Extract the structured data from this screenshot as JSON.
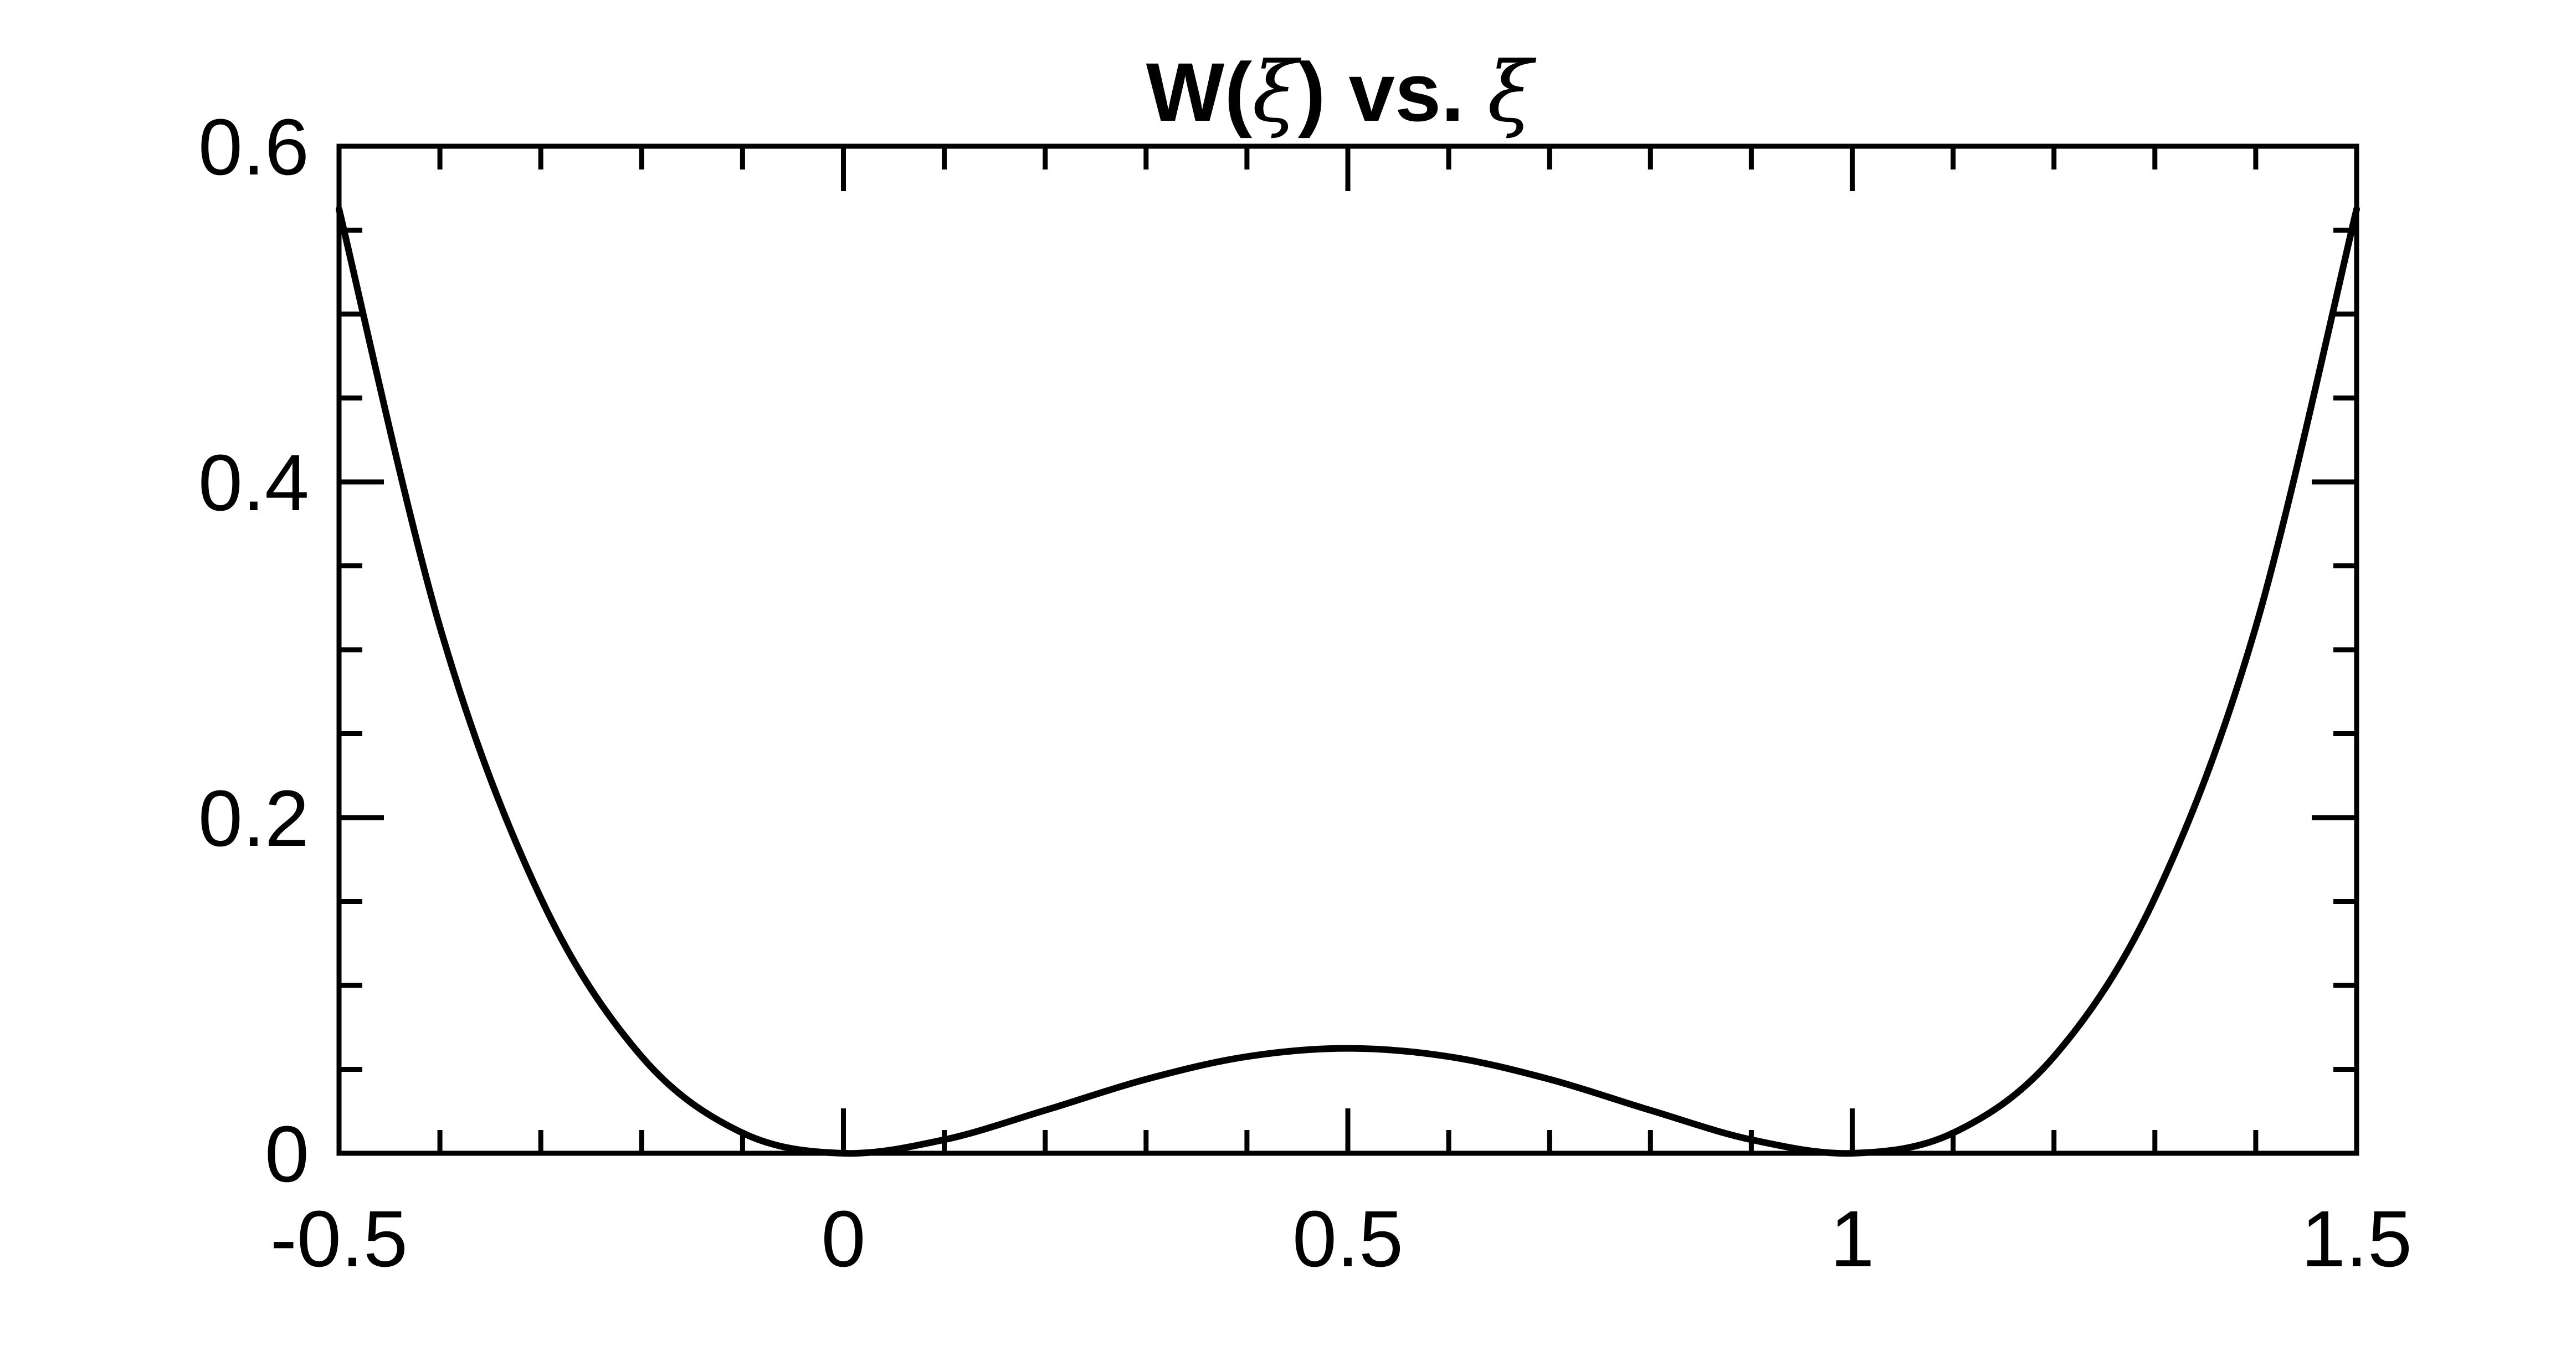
{
  "chart_data": {
    "type": "line",
    "title": {
      "prefix": "W(",
      "symbol": "ξ",
      "middle": ") vs. ",
      "suffix_symbol": "ξ"
    },
    "xlabel": "",
    "ylabel": "",
    "xlim": [
      -0.5,
      1.5
    ],
    "ylim": [
      0,
      0.6
    ],
    "x_ticks": [
      -0.5,
      0,
      0.5,
      1,
      1.5
    ],
    "x_tick_labels": [
      "-0.5",
      "0",
      "0.5",
      "1",
      "1.5"
    ],
    "x_minor_step": 0.1,
    "y_ticks": [
      0,
      0.2,
      0.4,
      0.6
    ],
    "y_tick_labels": [
      "0",
      "0.2",
      "0.4",
      "0.6"
    ],
    "y_minor_step": 0.05,
    "grid": false,
    "series": [
      {
        "x": [
          -0.5,
          -0.4,
          -0.3,
          -0.2,
          -0.1,
          0,
          0.1,
          0.2,
          0.3,
          0.4,
          0.5,
          0.6,
          0.7,
          0.8,
          0.9,
          1,
          1.1,
          1.2,
          1.3,
          1.4,
          1.5
        ],
        "y": [
          0.5625,
          0.3136,
          0.1521,
          0.0576,
          0.0121,
          0,
          0.0081,
          0.0256,
          0.0441,
          0.0576,
          0.0625,
          0.0576,
          0.0441,
          0.0256,
          0.0081,
          0,
          0.0121,
          0.0576,
          0.1521,
          0.3136,
          0.5625
        ],
        "color": "#000000"
      }
    ]
  }
}
